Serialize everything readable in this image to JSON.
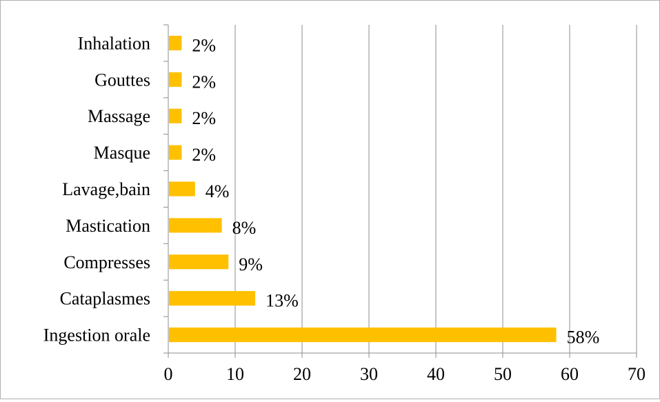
{
  "chart_data": {
    "type": "bar",
    "orientation": "horizontal",
    "categories": [
      "Inhalation",
      "Gouttes",
      "Massage",
      "Masque",
      "Lavage,bain",
      "Mastication",
      "Compresses",
      "Cataplasmes",
      "Ingestion orale"
    ],
    "values": [
      2,
      2,
      2,
      2,
      4,
      8,
      9,
      13,
      58
    ],
    "data_labels": [
      "2%",
      "2%",
      "2%",
      "2%",
      "4%",
      "8%",
      "9%",
      "13%",
      "58%"
    ],
    "title": "",
    "xlabel": "",
    "ylabel": "",
    "xlim": [
      0,
      70
    ],
    "xticks": [
      "0",
      "10",
      "20",
      "30",
      "40",
      "50",
      "60",
      "70"
    ],
    "grid": "vertical",
    "legend": "none",
    "bar_color": "#FFC000"
  }
}
